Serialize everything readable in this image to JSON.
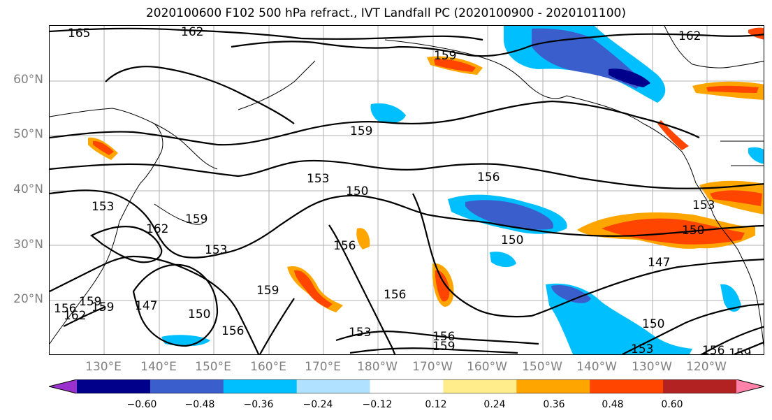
{
  "title": "2020100600 F102 500 hPa refract., IVT Landfall PC (2020100900 - 2020101100)",
  "lat_labels": [
    "60°N",
    "50°N",
    "40°N",
    "30°N",
    "20°N"
  ],
  "lon_labels": [
    "130°E",
    "140°E",
    "150°E",
    "160°E",
    "170°E",
    "180°W",
    "170°W",
    "160°W",
    "150°W",
    "140°W",
    "130°W",
    "120°W"
  ],
  "colorbar": {
    "ticks": [
      "−0.60",
      "−0.48",
      "−0.36",
      "−0.24",
      "−0.12",
      "0.12",
      "0.24",
      "0.36",
      "0.48",
      "0.60"
    ],
    "colors": [
      "#9932cc",
      "#00008b",
      "#3a5fcd",
      "#00bfff",
      "#b0e2ff",
      "#ffffff",
      "#ffec8b",
      "#ffa500",
      "#ff4500",
      "#b22222",
      "#ff82ab"
    ]
  },
  "contour_labels": [
    "165",
    "162",
    "159",
    "162",
    "159",
    "153",
    "156",
    "150",
    "153",
    "162",
    "159",
    "156",
    "153",
    "156",
    "159",
    "150",
    "147",
    "159",
    "150",
    "156",
    "153",
    "156",
    "159",
    "147",
    "150",
    "153",
    "150",
    "153",
    "156",
    "159",
    "162",
    "159",
    "156"
  ]
}
